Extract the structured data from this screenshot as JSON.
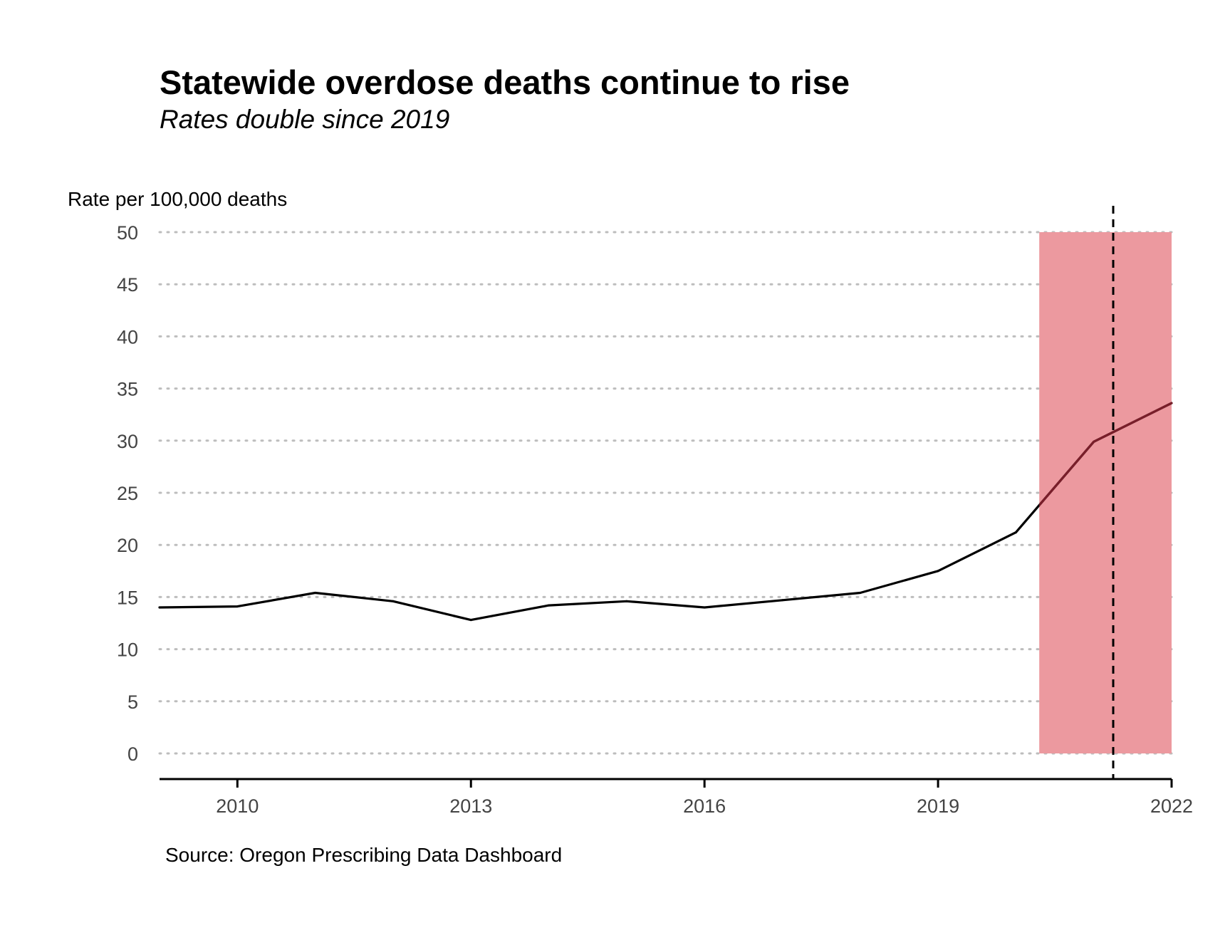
{
  "chart_data": {
    "type": "line",
    "title": "Statewide overdose deaths continue to rise",
    "subtitle": "Rates double since 2019",
    "ylabel": "Rate per 100,000 deaths",
    "xlabel": "",
    "source": "Source: Oregon Prescribing Data Dashboard",
    "xlim": [
      2009,
      2022
    ],
    "ylim": [
      0,
      50
    ],
    "x_ticks": [
      2010,
      2013,
      2016,
      2019,
      2022
    ],
    "y_ticks": [
      0,
      5,
      10,
      15,
      20,
      25,
      30,
      35,
      40,
      45,
      50
    ],
    "grid": "horizontal dotted",
    "series": [
      {
        "x": [
          2009,
          2010,
          2011,
          2012,
          2013,
          2014,
          2015,
          2016,
          2017,
          2018,
          2019,
          2020,
          2021,
          2022
        ],
        "values": [
          14.0,
          14.1,
          15.4,
          14.6,
          12.8,
          14.2,
          14.6,
          14.0,
          14.7,
          15.4,
          17.5,
          21.2,
          29.9,
          33.6
        ]
      }
    ],
    "highlight_band": {
      "x_start": 2020.3,
      "x_end": 2022,
      "y_start": 0,
      "y_end": 50,
      "color": "#ec999f"
    },
    "reference_line": {
      "x": 2021.25,
      "style": "dashed",
      "color": "#000000"
    },
    "colors": {
      "line": "#000000",
      "line_in_band": "#7a1e2a",
      "band": "#ec999f",
      "grid": "#bdbdbd"
    }
  }
}
